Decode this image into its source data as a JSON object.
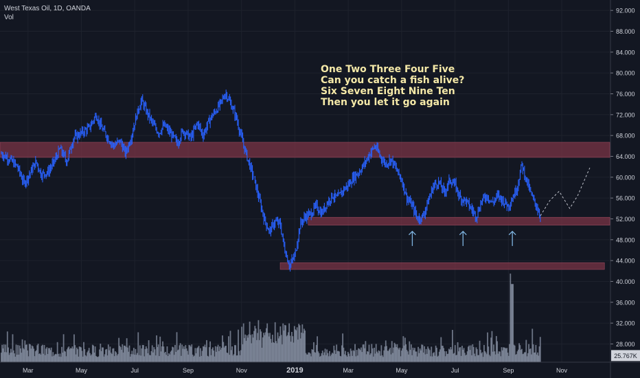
{
  "header": {
    "title": "West Texas Oil, 1D, OANDA",
    "volume_label": "Vol"
  },
  "annotation": {
    "lines": [
      "One Two Three Four Five",
      "Can you catch a fish alive?",
      "Six Seven Eight Nine Ten",
      "Then you let it go again"
    ]
  },
  "chart_data": {
    "type": "line",
    "symbol": "West Texas Oil",
    "interval": "1D",
    "source": "OANDA",
    "price_ticks": [
      "92.000",
      "88.000",
      "84.000",
      "80.000",
      "76.000",
      "72.000",
      "68.000",
      "64.000",
      "60.000",
      "56.000",
      "52.000",
      "48.000",
      "44.000",
      "40.000",
      "36.000",
      "32.000",
      "28.000"
    ],
    "y_range": [
      24.5,
      94.0
    ],
    "x_ticks": [
      "Mar",
      "May",
      "Jul",
      "Sep",
      "Nov",
      "2019",
      "Mar",
      "May",
      "Jul",
      "Sep",
      "Nov"
    ],
    "x_tick_month_index": [
      2,
      4,
      6,
      8,
      10,
      12,
      14,
      16,
      18,
      20,
      22
    ],
    "x_range_months": [
      0.95,
      23.8
    ],
    "last_volume_label": "25.767K",
    "series": [
      {
        "color": "#2962ff",
        "points": [
          [
            1.0,
            64.5
          ],
          [
            1.3,
            63.5
          ],
          [
            1.6,
            62.0
          ],
          [
            1.85,
            58.8
          ],
          [
            2.1,
            61.0
          ],
          [
            2.3,
            63.0
          ],
          [
            2.5,
            60.5
          ],
          [
            2.75,
            61.0
          ],
          [
            3.0,
            63.2
          ],
          [
            3.2,
            65.5
          ],
          [
            3.45,
            63.0
          ],
          [
            3.7,
            67.5
          ],
          [
            4.0,
            68.5
          ],
          [
            4.3,
            69.5
          ],
          [
            4.55,
            72.0
          ],
          [
            4.75,
            69.5
          ],
          [
            5.0,
            67.5
          ],
          [
            5.2,
            66.0
          ],
          [
            5.45,
            67.0
          ],
          [
            5.65,
            64.5
          ],
          [
            5.85,
            67.5
          ],
          [
            6.1,
            72.5
          ],
          [
            6.25,
            74.8
          ],
          [
            6.45,
            72.5
          ],
          [
            6.7,
            70.0
          ],
          [
            6.9,
            68.5
          ],
          [
            7.1,
            70.0
          ],
          [
            7.4,
            68.0
          ],
          [
            7.6,
            66.5
          ],
          [
            7.8,
            69.0
          ],
          [
            8.1,
            67.5
          ],
          [
            8.35,
            70.5
          ],
          [
            8.55,
            68.0
          ],
          [
            8.8,
            71.0
          ],
          [
            9.0,
            72.5
          ],
          [
            9.2,
            74.0
          ],
          [
            9.4,
            76.2
          ],
          [
            9.6,
            74.0
          ],
          [
            9.8,
            71.5
          ],
          [
            10.0,
            67.5
          ],
          [
            10.2,
            64.0
          ],
          [
            10.45,
            60.0
          ],
          [
            10.65,
            56.0
          ],
          [
            10.85,
            52.0
          ],
          [
            11.05,
            49.5
          ],
          [
            11.25,
            51.5
          ],
          [
            11.45,
            51.0
          ],
          [
            11.6,
            46.5
          ],
          [
            11.8,
            43.0
          ],
          [
            12.0,
            45.0
          ],
          [
            12.2,
            51.0
          ],
          [
            12.4,
            52.5
          ],
          [
            12.6,
            53.0
          ],
          [
            12.8,
            54.5
          ],
          [
            13.0,
            53.0
          ],
          [
            13.2,
            55.0
          ],
          [
            13.4,
            56.5
          ],
          [
            13.6,
            56.0
          ],
          [
            13.8,
            57.5
          ],
          [
            14.0,
            58.5
          ],
          [
            14.2,
            60.0
          ],
          [
            14.4,
            61.0
          ],
          [
            14.6,
            62.5
          ],
          [
            14.8,
            64.5
          ],
          [
            15.0,
            66.0
          ],
          [
            15.2,
            64.0
          ],
          [
            15.4,
            62.5
          ],
          [
            15.6,
            63.5
          ],
          [
            15.8,
            61.5
          ],
          [
            16.0,
            59.5
          ],
          [
            16.2,
            56.0
          ],
          [
            16.4,
            54.5
          ],
          [
            16.6,
            52.0
          ],
          [
            16.8,
            52.5
          ],
          [
            17.0,
            55.5
          ],
          [
            17.2,
            58.5
          ],
          [
            17.4,
            59.0
          ],
          [
            17.6,
            57.0
          ],
          [
            17.8,
            59.5
          ],
          [
            18.0,
            58.5
          ],
          [
            18.2,
            56.0
          ],
          [
            18.4,
            55.5
          ],
          [
            18.6,
            54.0
          ],
          [
            18.8,
            52.5
          ],
          [
            19.0,
            55.5
          ],
          [
            19.2,
            56.5
          ],
          [
            19.4,
            55.0
          ],
          [
            19.6,
            56.5
          ],
          [
            19.8,
            55.5
          ],
          [
            20.0,
            54.5
          ],
          [
            20.2,
            56.5
          ],
          [
            20.35,
            58.5
          ],
          [
            20.5,
            62.5
          ],
          [
            20.7,
            59.0
          ],
          [
            20.9,
            56.0
          ],
          [
            21.05,
            54.5
          ],
          [
            21.2,
            52.5
          ]
        ]
      }
    ],
    "projection_points": [
      [
        21.2,
        52.6
      ],
      [
        21.55,
        55.5
      ],
      [
        21.9,
        57.3
      ],
      [
        22.3,
        54.0
      ],
      [
        22.6,
        56.5
      ],
      [
        23.05,
        61.8
      ]
    ],
    "zones": [
      {
        "from_month": 0.95,
        "to_month": 23.8,
        "high": 66.7,
        "low": 63.8
      },
      {
        "from_month": 12.5,
        "to_month": 23.8,
        "high": 52.3,
        "low": 50.8
      },
      {
        "from_month": 11.45,
        "to_month": 23.6,
        "high": 43.6,
        "low": 42.3
      }
    ],
    "arrow_months": [
      16.4,
      18.3,
      20.15
    ],
    "colors": {
      "background": "#131722",
      "line": "#2962ff",
      "zone": "#7a3446",
      "projection": "#c0c3cc",
      "arrow": "#7fb4e0",
      "volume": "#8c95a8"
    }
  }
}
